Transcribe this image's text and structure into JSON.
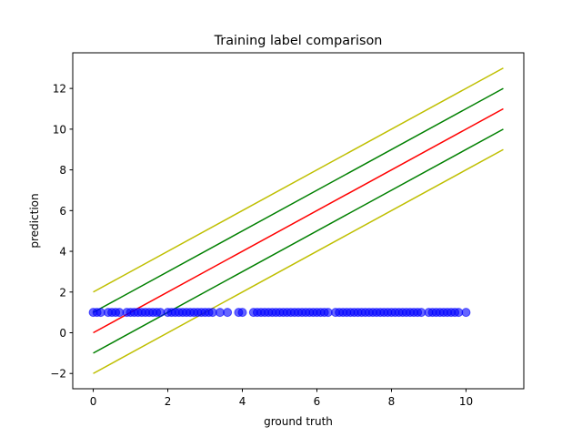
{
  "chart_data": {
    "type": "scatter",
    "title": "Training label comparison",
    "xlabel": "ground truth",
    "ylabel": "prediction",
    "xlim": [
      -0.55,
      11.55
    ],
    "ylim": [
      -2.75,
      13.75
    ],
    "xticks": [
      0,
      2,
      4,
      6,
      8,
      10
    ],
    "yticks": [
      -2,
      0,
      2,
      4,
      6,
      8,
      10,
      12
    ],
    "grid": false,
    "colors": {
      "scatter": "#0000ff",
      "ideal": "#ff0000",
      "band1": "#008000",
      "band2": "#bfbf00"
    },
    "lines": [
      {
        "role": "band2-upper",
        "color": "#bfbf00",
        "x": [
          0,
          11
        ],
        "y": [
          2,
          13
        ]
      },
      {
        "role": "band1-upper",
        "color": "#008000",
        "x": [
          0,
          11
        ],
        "y": [
          1,
          12
        ]
      },
      {
        "role": "ideal",
        "color": "#ff0000",
        "x": [
          0,
          11
        ],
        "y": [
          0,
          11
        ]
      },
      {
        "role": "band1-lower",
        "color": "#008000",
        "x": [
          0,
          11
        ],
        "y": [
          -1,
          10
        ]
      },
      {
        "role": "band2-lower",
        "color": "#bfbf00",
        "x": [
          0,
          11
        ],
        "y": [
          -2,
          9
        ]
      }
    ],
    "scatter": {
      "color": "#0000ff",
      "y": 1,
      "x": [
        0.0,
        0.1,
        0.2,
        0.4,
        0.5,
        0.6,
        0.7,
        0.9,
        1.0,
        1.1,
        1.2,
        1.3,
        1.4,
        1.5,
        1.6,
        1.7,
        1.8,
        2.0,
        2.1,
        2.2,
        2.3,
        2.4,
        2.5,
        2.6,
        2.7,
        2.8,
        2.9,
        3.0,
        3.1,
        3.2,
        3.4,
        3.6,
        3.9,
        4.0,
        4.3,
        4.4,
        4.5,
        4.6,
        4.7,
        4.8,
        4.9,
        5.0,
        5.1,
        5.2,
        5.3,
        5.4,
        5.5,
        5.6,
        5.7,
        5.8,
        5.9,
        6.0,
        6.1,
        6.2,
        6.3,
        6.5,
        6.6,
        6.7,
        6.8,
        6.9,
        7.0,
        7.1,
        7.2,
        7.3,
        7.4,
        7.5,
        7.6,
        7.7,
        7.8,
        7.9,
        8.0,
        8.1,
        8.2,
        8.3,
        8.4,
        8.5,
        8.6,
        8.7,
        8.8,
        9.0,
        9.1,
        9.2,
        9.3,
        9.4,
        9.5,
        9.6,
        9.7,
        9.8,
        10.0
      ]
    }
  }
}
